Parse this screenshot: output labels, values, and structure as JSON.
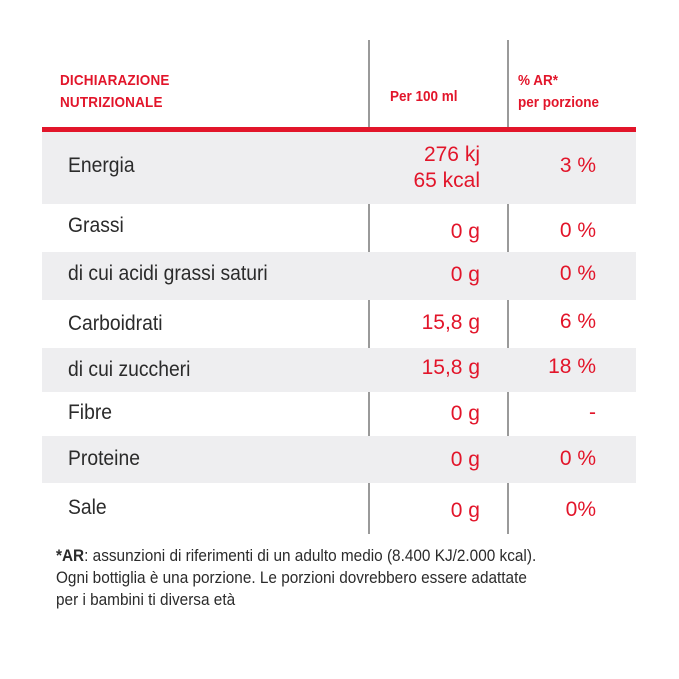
{
  "header": {
    "label_line1": "DICHIARAZIONE",
    "label_line2": "NUTRIZIONALE",
    "per100": "Per 100 ml",
    "ar_line1": "% AR*",
    "ar_line2": "per porzione"
  },
  "rows": [
    {
      "name": "Energia",
      "value_line1": "276 kj",
      "value_line2": "65 kcal",
      "ar": "3 %"
    },
    {
      "name": "Grassi",
      "value": "0 g",
      "ar": "0 %"
    },
    {
      "name": "di cui acidi grassi saturi",
      "value": "0 g",
      "ar": "0 %"
    },
    {
      "name": "Carboidrati",
      "value": "15,8 g",
      "ar": "6 %"
    },
    {
      "name": "di cui zuccheri",
      "value": "15,8 g",
      "ar": "18 %"
    },
    {
      "name": "Fibre",
      "value": "0 g",
      "ar": "-"
    },
    {
      "name": "Proteine",
      "value": "0 g",
      "ar": "0 %"
    },
    {
      "name": "Sale",
      "value": "0 g",
      "ar": "0%"
    }
  ],
  "footnote": {
    "bold": "*AR",
    "line1_rest": ": assunzioni di riferimenti di un adulto medio (8.400 KJ/2.000 kcal).",
    "line2": "Ogni bottiglia è una porzione. Le porzioni dovrebbero essere adattate",
    "line3": "per i bambini ti diversa età"
  }
}
